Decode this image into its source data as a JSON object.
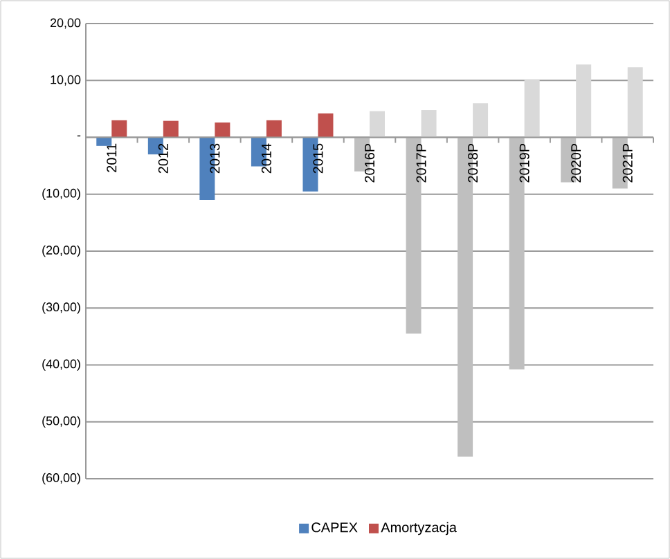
{
  "chart_data": {
    "type": "bar",
    "categories": [
      "2011",
      "2012",
      "2013",
      "2014",
      "2015",
      "2016P",
      "2017P",
      "2018P",
      "2019P",
      "2020P",
      "2021P"
    ],
    "series": [
      {
        "name": "CAPEX",
        "color": "#4f81bd",
        "colors": [
          "#4f81bd",
          "#4f81bd",
          "#4f81bd",
          "#4f81bd",
          "#4f81bd",
          "#bfbfbf",
          "#bfbfbf",
          "#bfbfbf",
          "#bfbfbf",
          "#bfbfbf",
          "#bfbfbf"
        ],
        "values": [
          -1.5,
          -3.0,
          -11.0,
          -5.1,
          -9.5,
          -6.0,
          -34.5,
          -56.1,
          -40.8,
          -7.9,
          -9.0
        ]
      },
      {
        "name": "Amortyzacja",
        "color": "#c0504d",
        "colors": [
          "#c0504d",
          "#c0504d",
          "#c0504d",
          "#c0504d",
          "#c0504d",
          "#d9d9d9",
          "#d9d9d9",
          "#d9d9d9",
          "#d9d9d9",
          "#d9d9d9",
          "#d9d9d9"
        ],
        "values": [
          3.0,
          2.9,
          2.6,
          3.0,
          4.2,
          4.6,
          4.8,
          6.0,
          10.2,
          12.8,
          12.3
        ]
      }
    ],
    "ylim": [
      -60,
      20
    ],
    "yticks": [
      {
        "value": -60,
        "label": "(60,00)"
      },
      {
        "value": -50,
        "label": "(50,00)"
      },
      {
        "value": -40,
        "label": "(40,00)"
      },
      {
        "value": -30,
        "label": "(30,00)"
      },
      {
        "value": -20,
        "label": "(20,00)"
      },
      {
        "value": -10,
        "label": "(10,00)"
      },
      {
        "value": 0,
        "label": "-"
      },
      {
        "value": 10,
        "label": "10,00"
      },
      {
        "value": 20,
        "label": "20,00"
      }
    ],
    "grid": "y",
    "legend": "bottom"
  }
}
